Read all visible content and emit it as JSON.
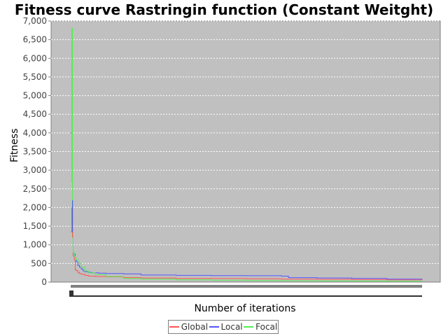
{
  "chart_data": {
    "type": "line",
    "title": "Fitness curve Rastringin function (Constant Weitght)",
    "xlabel": "Number of iterations",
    "ylabel": "Fitness",
    "ylim": [
      0,
      7000
    ],
    "yticks": [
      0,
      500,
      1000,
      1500,
      2000,
      2500,
      3000,
      3500,
      4000,
      4500,
      5000,
      5500,
      6000,
      6500,
      7000
    ],
    "ytick_labels": [
      "0",
      "500",
      "1,000",
      "1,500",
      "2,000",
      "2,500",
      "3,000",
      "3,500",
      "4,000",
      "4,500",
      "5,000",
      "5,500",
      "6,000",
      "6,500",
      "7,000"
    ],
    "xlim": [
      0,
      100
    ],
    "grid": true,
    "legend_position": "bottom",
    "colors": {
      "plot_bg": "#c0c0c0",
      "grid": "#ffffff"
    },
    "series": [
      {
        "name": "Global",
        "color": "#ff5555",
        "x": [
          0.0,
          0.3,
          0.5,
          0.7,
          1.0,
          1.3,
          1.6,
          2.0,
          2.5,
          3.0,
          4.0,
          5.0,
          7.0,
          10.0,
          15.0,
          20.0,
          30.0,
          40.0,
          50.0,
          60.0,
          70.0,
          80.0,
          90.0,
          100.0
        ],
        "values": [
          1350,
          2000,
          1200,
          700,
          600,
          330,
          310,
          260,
          230,
          210,
          180,
          160,
          150,
          140,
          120,
          110,
          100,
          95,
          90,
          80,
          75,
          70,
          60,
          55
        ]
      },
      {
        "name": "Local",
        "color": "#5555ff",
        "x": [
          0.0,
          0.3,
          0.5,
          0.7,
          1.0,
          1.3,
          1.6,
          2.0,
          2.5,
          3.0,
          3.5,
          4.0,
          5.0,
          6.0,
          8.0,
          10.0,
          15.0,
          18.0,
          20.0,
          30.0,
          40.0,
          50.0,
          60.0,
          62.0,
          70.0,
          80.0,
          90.0,
          100.0
        ],
        "values": [
          4000,
          6800,
          1350,
          800,
          750,
          650,
          550,
          450,
          400,
          350,
          300,
          280,
          260,
          250,
          240,
          230,
          220,
          220,
          190,
          180,
          175,
          170,
          160,
          120,
          110,
          100,
          80,
          70
        ]
      },
      {
        "name": "Focal",
        "color": "#55ee55",
        "x": [
          0.0,
          0.3,
          0.5,
          0.7,
          1.0,
          1.3,
          1.6,
          2.0,
          2.5,
          3.0,
          4.0,
          5.0,
          7.0,
          10.0,
          15.0,
          20.0,
          30.0,
          40.0,
          50.0,
          60.0,
          70.0,
          80.0,
          90.0,
          100.0
        ],
        "values": [
          2700,
          6800,
          2200,
          800,
          700,
          650,
          600,
          550,
          500,
          400,
          300,
          250,
          200,
          150,
          100,
          80,
          60,
          50,
          40,
          35,
          30,
          28,
          25,
          20
        ]
      }
    ]
  }
}
